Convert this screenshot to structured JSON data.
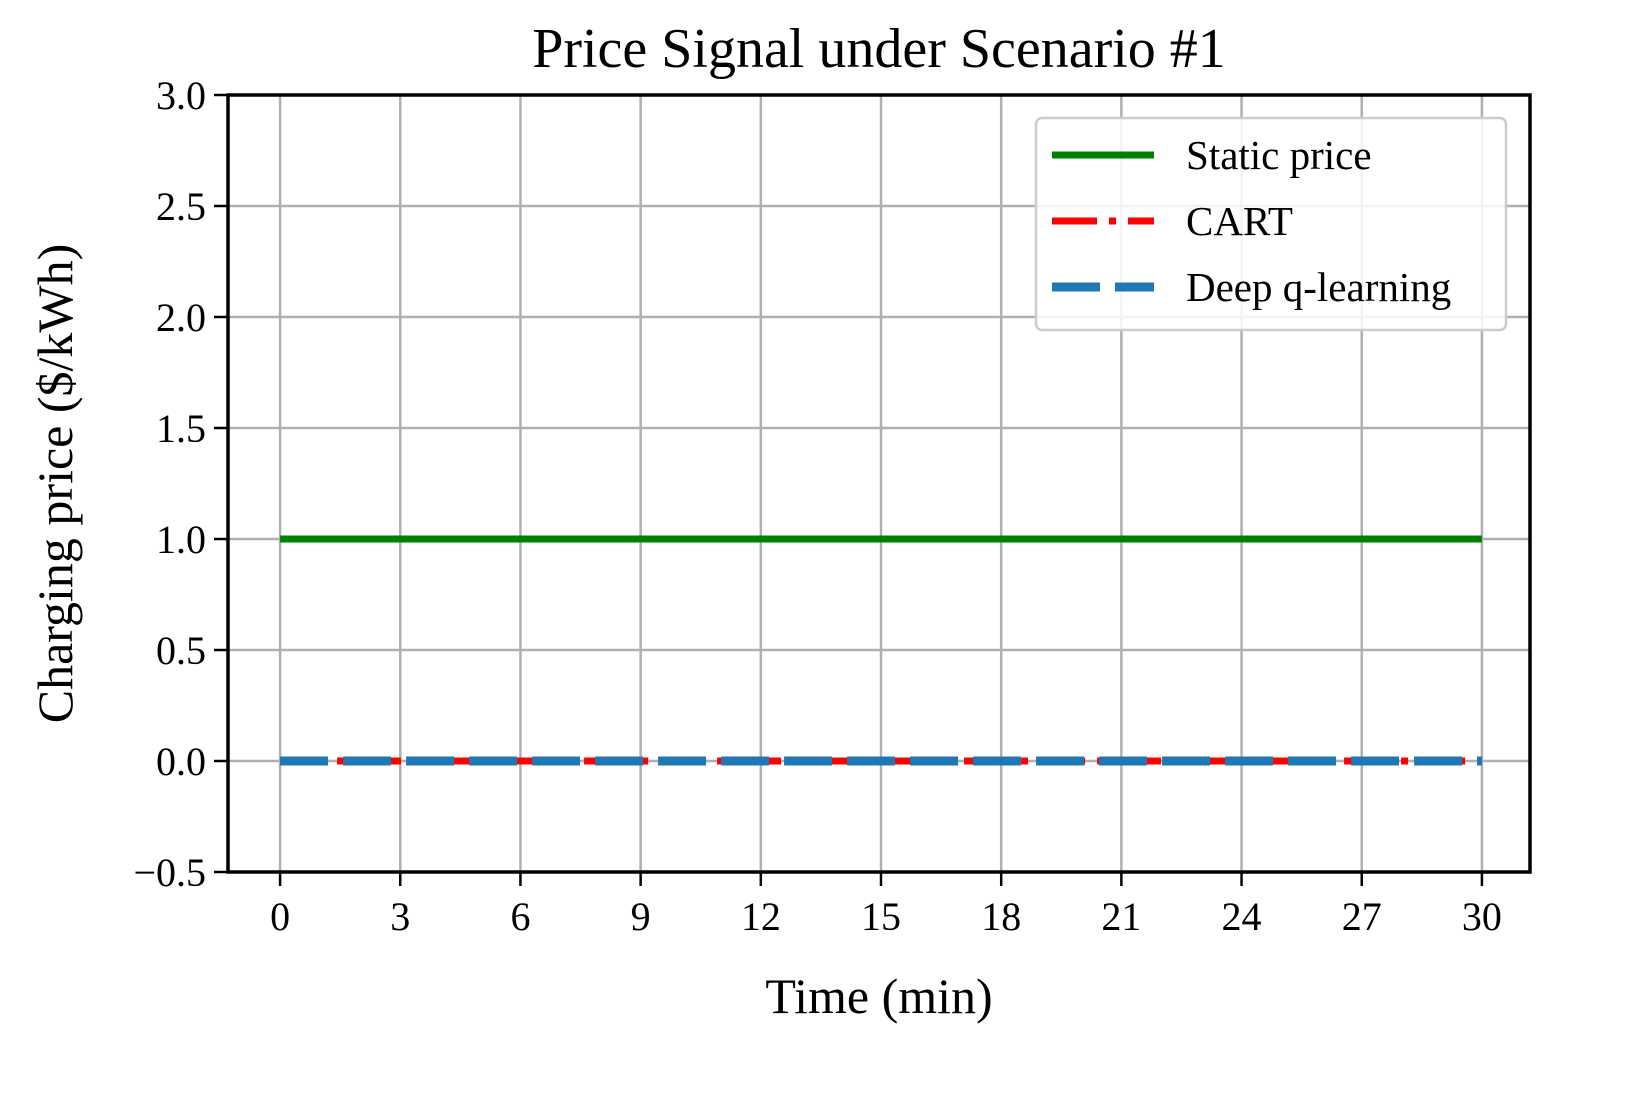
{
  "chart_data": {
    "type": "line",
    "title": "Price Signal under Scenario #1",
    "xlabel": "Time (min)",
    "ylabel": "Charging price ($/kWh)",
    "xlim": [
      -1.3,
      31.2
    ],
    "ylim": [
      -0.5,
      3.0
    ],
    "x_ticks": [
      0,
      3,
      6,
      9,
      12,
      15,
      18,
      21,
      24,
      27,
      30
    ],
    "x_tick_labels": [
      "0",
      "3",
      "6",
      "9",
      "12",
      "15",
      "18",
      "21",
      "24",
      "27",
      "30"
    ],
    "y_ticks": [
      -0.5,
      0.0,
      0.5,
      1.0,
      1.5,
      2.0,
      2.5,
      3.0
    ],
    "y_tick_labels": [
      "−0.5",
      "0.0",
      "0.5",
      "1.0",
      "1.5",
      "2.0",
      "2.5",
      "3.0"
    ],
    "grid": true,
    "legend_position": "top-right",
    "series": [
      {
        "name": "Static price",
        "style": "solid",
        "color": "#008000",
        "x": [
          0,
          30
        ],
        "y": [
          1.0,
          1.0
        ]
      },
      {
        "name": "CART",
        "style": "dashdot",
        "color": "#ff0000",
        "x": [
          0,
          30
        ],
        "y": [
          0.0,
          0.0
        ]
      },
      {
        "name": "Deep q-learning",
        "style": "dashed",
        "color": "#1f77b4",
        "x": [
          0,
          30
        ],
        "y": [
          0.0,
          0.0
        ]
      }
    ]
  }
}
